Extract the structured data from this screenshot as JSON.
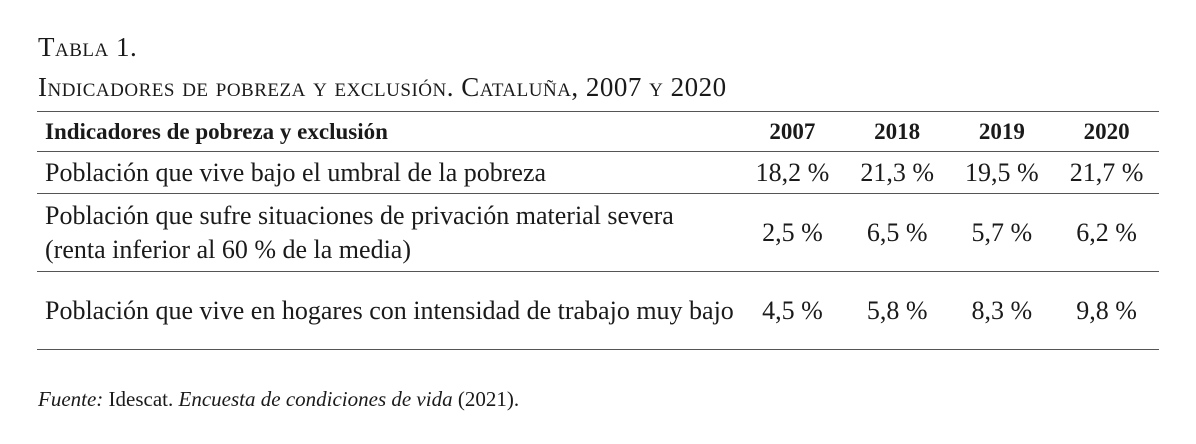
{
  "caption": {
    "number": "Tabla 1.",
    "title": "Indicadores de pobreza y exclusión. Cataluña, 2007 y 2020"
  },
  "table": {
    "header": {
      "label": "Indicadores de pobreza y exclusión",
      "years": [
        "2007",
        "2018",
        "2019",
        "2020"
      ]
    },
    "rows": [
      {
        "label": "Población que vive bajo el umbral de la pobreza",
        "values": [
          "18,2 %",
          "21,3 %",
          "19,5 %",
          "21,7 %"
        ]
      },
      {
        "label": "Población que sufre situaciones de privación material severa (renta inferior al 60 % de la media)",
        "values": [
          "2,5 %",
          "6,5 %",
          "5,7 %",
          "6,2 %"
        ]
      },
      {
        "label": "Población que vive en hogares con intensidad de trabajo muy bajo",
        "values": [
          "4,5 %",
          "5,8 %",
          "8,3 %",
          "9,8 %"
        ]
      }
    ]
  },
  "source": {
    "label": "Fuente:",
    "org": "Idescat.",
    "title": "Encuesta de condiciones de vida",
    "year": "(2021)."
  }
}
